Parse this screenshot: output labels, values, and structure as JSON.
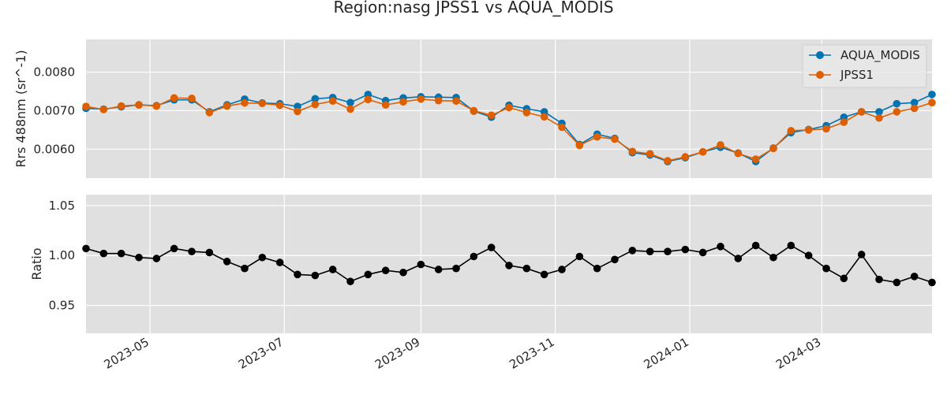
{
  "chart_data": {
    "title": "Region:nasg JPSS1 vs AQUA_MODIS",
    "type": "line",
    "x": [
      "2023-04-02",
      "2023-04-10",
      "2023-04-18",
      "2023-04-26",
      "2023-05-04",
      "2023-05-12",
      "2023-05-20",
      "2023-05-28",
      "2023-06-05",
      "2023-06-13",
      "2023-06-21",
      "2023-06-29",
      "2023-07-07",
      "2023-07-15",
      "2023-07-23",
      "2023-07-31",
      "2023-08-08",
      "2023-08-16",
      "2023-08-24",
      "2023-09-01",
      "2023-09-09",
      "2023-09-17",
      "2023-09-25",
      "2023-10-03",
      "2023-10-11",
      "2023-10-19",
      "2023-10-27",
      "2023-11-04",
      "2023-11-12",
      "2023-11-20",
      "2023-11-28",
      "2023-12-06",
      "2023-12-14",
      "2023-12-22",
      "2023-12-30",
      "2024-01-07",
      "2024-01-15",
      "2024-01-23",
      "2024-01-31",
      "2024-02-08",
      "2024-02-16",
      "2024-02-24",
      "2024-03-03",
      "2024-03-11",
      "2024-03-19",
      "2024-03-27",
      "2024-04-04",
      "2024-04-12",
      "2024-04-20"
    ],
    "panels": [
      {
        "ylabel": "Rrs 488nm (sr^-1)",
        "ylim": [
          0.00525,
          0.00885
        ],
        "yticks": [
          0.006,
          0.007,
          0.008
        ],
        "ytick_labels": [
          "0.0060",
          "0.0070",
          "0.0080"
        ],
        "legend": "top-right",
        "series": [
          {
            "name": "AQUA_MODIS",
            "color": "#0173b2",
            "values": [
              0.00706,
              0.00704,
              0.0071,
              0.00715,
              0.00713,
              0.00728,
              0.00728,
              0.00697,
              0.00715,
              0.0073,
              0.0072,
              0.00718,
              0.00711,
              0.00731,
              0.00734,
              0.00721,
              0.00742,
              0.00726,
              0.00733,
              0.00736,
              0.00735,
              0.00734,
              0.00699,
              0.00683,
              0.00714,
              0.00705,
              0.00697,
              0.00667,
              0.00612,
              0.00639,
              0.00628,
              0.00591,
              0.00585,
              0.00568,
              0.00578,
              0.00593,
              0.00605,
              0.0059,
              0.00568,
              0.00603,
              0.00643,
              0.00651,
              0.00661,
              0.00683,
              0.00697,
              0.00697,
              0.00718,
              0.00721,
              0.00742
            ]
          },
          {
            "name": "JPSS1",
            "color": "#de5f00",
            "values": [
              0.00711,
              0.00703,
              0.00712,
              0.00715,
              0.00712,
              0.00733,
              0.00732,
              0.00695,
              0.00712,
              0.0072,
              0.00719,
              0.00714,
              0.00698,
              0.00716,
              0.00725,
              0.00704,
              0.00729,
              0.00715,
              0.00723,
              0.0073,
              0.00726,
              0.00725,
              0.007,
              0.00688,
              0.00708,
              0.00695,
              0.00684,
              0.00657,
              0.0061,
              0.00632,
              0.00626,
              0.00594,
              0.00588,
              0.0057,
              0.0058,
              0.00593,
              0.00611,
              0.00589,
              0.00574,
              0.00602,
              0.00648,
              0.0065,
              0.00653,
              0.0067,
              0.00697,
              0.00681,
              0.00697,
              0.00706,
              0.00721
            ]
          }
        ]
      },
      {
        "ylabel": "Ratio",
        "ylim": [
          0.922,
          1.061
        ],
        "yticks": [
          0.95,
          1.0,
          1.05
        ],
        "ytick_labels": [
          "0.95",
          "1.00",
          "1.05"
        ],
        "series": [
          {
            "name": "",
            "color": "#000000",
            "values": [
              1.007,
              1.002,
              1.002,
              0.998,
              0.997,
              1.007,
              1.004,
              1.003,
              0.994,
              0.987,
              0.998,
              0.993,
              0.981,
              0.98,
              0.986,
              0.974,
              0.981,
              0.985,
              0.983,
              0.991,
              0.986,
              0.987,
              0.999,
              1.008,
              0.99,
              0.987,
              0.981,
              0.986,
              0.999,
              0.987,
              0.996,
              1.005,
              1.004,
              1.004,
              1.006,
              1.003,
              1.009,
              0.997,
              1.01,
              0.998,
              1.01,
              1.0,
              0.987,
              0.977,
              1.001,
              0.976,
              0.973,
              0.979,
              0.973
            ]
          }
        ]
      }
    ],
    "xticks": [
      "2023-05-01",
      "2023-07-01",
      "2023-09-01",
      "2023-11-01",
      "2024-01-01",
      "2024-03-01"
    ],
    "xtick_labels": [
      "2023-05",
      "2023-07",
      "2023-09",
      "2023-11",
      "2024-01",
      "2024-03"
    ],
    "xlim": [
      "2023-04-02",
      "2024-04-20"
    ],
    "grid": true
  }
}
